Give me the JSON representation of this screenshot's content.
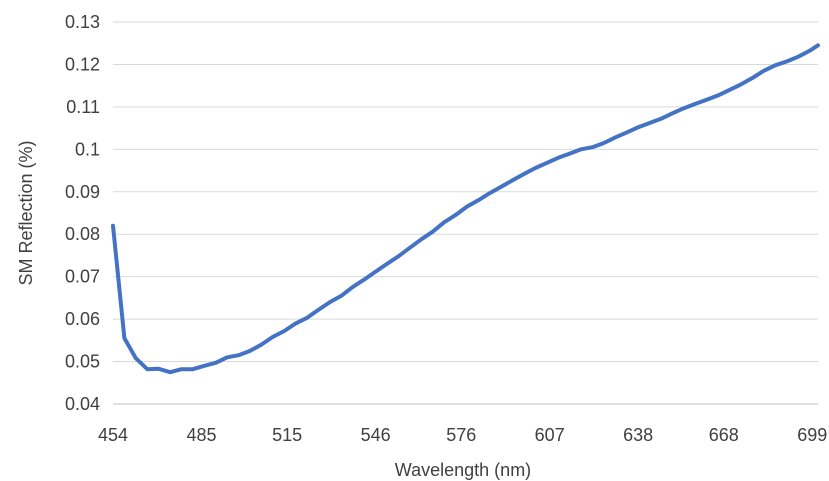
{
  "chart_data": {
    "type": "line",
    "title": "",
    "xlabel": "Wavelength (nm)",
    "ylabel": "SM Reflection (%)",
    "xlim": [
      454,
      701
    ],
    "ylim": [
      0.04,
      0.13
    ],
    "x_tick_labels": [
      "454",
      "485",
      "515",
      "546",
      "576",
      "607",
      "638",
      "668",
      "699"
    ],
    "y_tick_labels": [
      "0.04",
      "0.05",
      "0.06",
      "0.07",
      "0.08",
      "0.09",
      "0.1",
      "0.11",
      "0.12",
      "0.13"
    ],
    "grid": "horizontal",
    "legend": "none",
    "series": [
      {
        "color": "#4472c4",
        "x": [
          454,
          458,
          462,
          466,
          470,
          474,
          478,
          482,
          486,
          490,
          494,
          498,
          502,
          506,
          510,
          514,
          518,
          522,
          526,
          530,
          534,
          538,
          542,
          546,
          550,
          554,
          558,
          562,
          566,
          570,
          574,
          578,
          582,
          586,
          590,
          594,
          598,
          602,
          606,
          610,
          614,
          618,
          622,
          626,
          630,
          634,
          638,
          642,
          646,
          650,
          654,
          658,
          662,
          666,
          670,
          674,
          678,
          682,
          686,
          690,
          694,
          698,
          701
        ],
        "y": [
          0.082,
          0.0555,
          0.0508,
          0.0482,
          0.0483,
          0.0475,
          0.0482,
          0.0482,
          0.049,
          0.0497,
          0.051,
          0.0515,
          0.0525,
          0.054,
          0.0558,
          0.0572,
          0.059,
          0.0603,
          0.0622,
          0.064,
          0.0655,
          0.0676,
          0.0693,
          0.0712,
          0.073,
          0.0748,
          0.0768,
          0.0788,
          0.0806,
          0.0828,
          0.0845,
          0.0865,
          0.088,
          0.0897,
          0.0912,
          0.0927,
          0.0942,
          0.0956,
          0.0968,
          0.098,
          0.099,
          0.1,
          0.1005,
          0.1015,
          0.1028,
          0.104,
          0.1052,
          0.1062,
          0.1072,
          0.1085,
          0.1097,
          0.1107,
          0.1117,
          0.1127,
          0.114,
          0.1153,
          0.1168,
          0.1185,
          0.1198,
          0.1207,
          0.1218,
          0.1232,
          0.1245
        ]
      }
    ]
  }
}
